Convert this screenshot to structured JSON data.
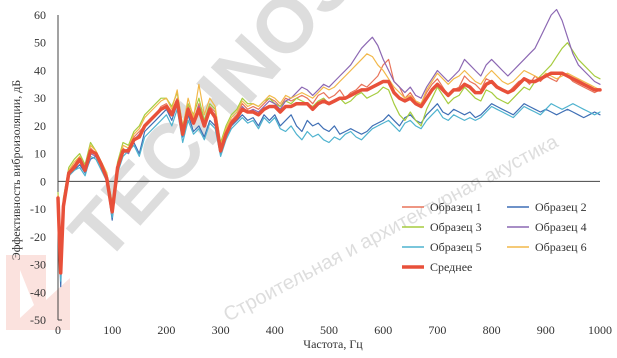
{
  "chart_data": {
    "type": "line",
    "title": "",
    "xlabel": "Частота, Гц",
    "ylabel": "Эффективность виброизоляции, дБ",
    "xlim": [
      0,
      1000
    ],
    "ylim": [
      -50,
      60
    ],
    "x_ticks": [
      0,
      100,
      200,
      300,
      400,
      500,
      600,
      700,
      800,
      900,
      1000
    ],
    "y_ticks": [
      -50,
      -40,
      -30,
      -20,
      -10,
      0,
      10,
      20,
      30,
      40,
      50,
      60
    ],
    "grid": false,
    "legend_position": "bottom-right",
    "x": [
      0,
      5,
      10,
      20,
      30,
      40,
      50,
      60,
      70,
      80,
      90,
      100,
      110,
      120,
      130,
      140,
      150,
      160,
      170,
      180,
      190,
      200,
      210,
      220,
      230,
      240,
      250,
      260,
      270,
      280,
      290,
      300,
      310,
      320,
      330,
      340,
      350,
      360,
      370,
      380,
      390,
      400,
      410,
      420,
      430,
      440,
      450,
      460,
      470,
      480,
      490,
      500,
      510,
      520,
      530,
      540,
      550,
      560,
      570,
      580,
      590,
      600,
      610,
      620,
      630,
      640,
      650,
      660,
      670,
      680,
      690,
      700,
      710,
      720,
      730,
      740,
      750,
      760,
      770,
      780,
      790,
      800,
      810,
      820,
      830,
      840,
      850,
      860,
      870,
      880,
      890,
      900,
      910,
      920,
      930,
      940,
      950,
      960,
      970,
      980,
      990,
      1000
    ],
    "series": [
      {
        "name": "Образец 1",
        "color": "#e8735a",
        "width": 1.2,
        "values": [
          -5,
          -32,
          -8,
          4,
          6,
          9,
          4,
          12,
          10,
          6,
          2,
          -10,
          6,
          12,
          10,
          16,
          18,
          20,
          22,
          24,
          27,
          28,
          25,
          30,
          18,
          27,
          22,
          28,
          21,
          27,
          25,
          12,
          18,
          22,
          24,
          28,
          26,
          27,
          26,
          28,
          30,
          29,
          27,
          30,
          29,
          30,
          31,
          30,
          28,
          31,
          32,
          30,
          31,
          33,
          30,
          32,
          33,
          35,
          34,
          36,
          38,
          42,
          44,
          36,
          34,
          30,
          32,
          29,
          28,
          32,
          35,
          37,
          34,
          31,
          33,
          34,
          38,
          36,
          35,
          33,
          37,
          36,
          34,
          33,
          32,
          34,
          36,
          37,
          35,
          38,
          36,
          38,
          37,
          36,
          39,
          38,
          36,
          35,
          34,
          33,
          32,
          33
        ]
      },
      {
        "name": "Образец 2",
        "color": "#3f6fb5",
        "width": 1.2,
        "values": [
          -8,
          -38,
          -10,
          2,
          4,
          6,
          3,
          8,
          9,
          5,
          0,
          -14,
          4,
          10,
          12,
          14,
          10,
          18,
          20,
          22,
          24,
          26,
          22,
          28,
          16,
          24,
          18,
          20,
          16,
          22,
          20,
          10,
          16,
          20,
          22,
          24,
          22,
          23,
          20,
          24,
          22,
          24,
          20,
          22,
          24,
          20,
          18,
          22,
          20,
          21,
          19,
          18,
          20,
          17,
          18,
          19,
          18,
          17,
          18,
          20,
          21,
          22,
          24,
          22,
          20,
          23,
          24,
          22,
          21,
          24,
          26,
          28,
          25,
          24,
          26,
          25,
          24,
          25,
          23,
          24,
          26,
          28,
          27,
          26,
          25,
          24,
          26,
          28,
          27,
          26,
          25,
          26,
          25,
          24,
          25,
          26,
          25,
          24,
          23,
          24,
          25,
          24
        ]
      },
      {
        "name": "Образец 3",
        "color": "#a6cc3f",
        "width": 1.2,
        "values": [
          -4,
          -30,
          -6,
          5,
          8,
          10,
          6,
          14,
          11,
          7,
          3,
          -8,
          7,
          14,
          13,
          18,
          20,
          24,
          26,
          28,
          30,
          30,
          27,
          32,
          20,
          28,
          24,
          30,
          22,
          28,
          26,
          14,
          20,
          24,
          26,
          30,
          28,
          28,
          27,
          29,
          30,
          28,
          27,
          29,
          28,
          30,
          29,
          28,
          27,
          29,
          30,
          28,
          29,
          30,
          28,
          29,
          31,
          32,
          30,
          31,
          32,
          34,
          33,
          28,
          24,
          22,
          25,
          22,
          20,
          26,
          30,
          34,
          31,
          28,
          30,
          31,
          34,
          32,
          30,
          29,
          33,
          32,
          30,
          29,
          28,
          30,
          32,
          34,
          33,
          36,
          38,
          40,
          42,
          45,
          48,
          50,
          47,
          44,
          42,
          40,
          38,
          37
        ]
      },
      {
        "name": "Образец 4",
        "color": "#8c68b3",
        "width": 1.2,
        "values": [
          -6,
          -34,
          -9,
          3,
          5,
          7,
          4,
          10,
          9,
          6,
          1,
          -12,
          5,
          11,
          10,
          15,
          17,
          20,
          22,
          24,
          26,
          27,
          24,
          29,
          17,
          25,
          21,
          27,
          20,
          26,
          24,
          11,
          17,
          21,
          23,
          27,
          25,
          26,
          25,
          27,
          29,
          28,
          26,
          29,
          30,
          32,
          34,
          33,
          31,
          33,
          35,
          34,
          36,
          38,
          40,
          42,
          45,
          48,
          50,
          52,
          49,
          44,
          40,
          36,
          34,
          32,
          34,
          31,
          30,
          34,
          37,
          40,
          38,
          36,
          38,
          40,
          44,
          42,
          40,
          38,
          42,
          44,
          42,
          40,
          38,
          40,
          42,
          44,
          46,
          48,
          52,
          56,
          60,
          62,
          58,
          52,
          46,
          42,
          40,
          38,
          36,
          35
        ]
      },
      {
        "name": "Образец 5",
        "color": "#4fb3cf",
        "width": 1.2,
        "values": [
          -7,
          -36,
          -11,
          2,
          4,
          5,
          2,
          9,
          8,
          4,
          0,
          -13,
          3,
          9,
          11,
          13,
          9,
          16,
          18,
          20,
          22,
          24,
          20,
          26,
          14,
          22,
          17,
          19,
          15,
          21,
          19,
          9,
          15,
          19,
          21,
          23,
          21,
          22,
          19,
          23,
          21,
          23,
          19,
          18,
          20,
          17,
          15,
          18,
          16,
          17,
          15,
          14,
          16,
          15,
          17,
          18,
          16,
          15,
          17,
          19,
          20,
          21,
          22,
          20,
          18,
          21,
          22,
          20,
          19,
          22,
          24,
          26,
          23,
          22,
          24,
          23,
          22,
          23,
          22,
          23,
          25,
          27,
          26,
          25,
          24,
          23,
          25,
          27,
          26,
          25,
          24,
          26,
          28,
          27,
          26,
          27,
          28,
          27,
          26,
          25,
          24,
          25
        ]
      },
      {
        "name": "Образец 6",
        "color": "#f2b84a",
        "width": 1.2,
        "values": [
          -5,
          -31,
          -7,
          4,
          7,
          9,
          5,
          13,
          11,
          7,
          3,
          -9,
          6,
          13,
          12,
          17,
          19,
          23,
          25,
          27,
          29,
          30,
          26,
          33,
          19,
          30,
          23,
          35,
          24,
          30,
          27,
          13,
          19,
          23,
          25,
          29,
          27,
          28,
          27,
          29,
          31,
          30,
          28,
          31,
          30,
          31,
          32,
          31,
          30,
          32,
          34,
          33,
          34,
          36,
          38,
          40,
          42,
          44,
          46,
          45,
          42,
          40,
          37,
          34,
          32,
          30,
          31,
          29,
          28,
          33,
          36,
          39,
          37,
          35,
          37,
          38,
          40,
          38,
          36,
          35,
          38,
          40,
          38,
          36,
          35,
          36,
          38,
          40,
          39,
          38,
          37,
          39,
          38,
          37,
          38,
          39,
          38,
          37,
          36,
          35,
          34,
          33
        ]
      },
      {
        "name": "Среднее",
        "color": "#e8503a",
        "width": 3.5,
        "values": [
          -6,
          -33,
          -9,
          3,
          5,
          8,
          4,
          11,
          10,
          6,
          1,
          -11,
          5,
          11,
          11,
          15,
          16,
          20,
          22,
          24,
          26,
          27,
          24,
          29,
          17,
          26,
          21,
          26,
          20,
          26,
          23,
          11,
          17,
          21,
          23,
          26,
          25,
          25,
          24,
          26,
          27,
          27,
          25,
          27,
          27,
          28,
          28,
          28,
          26,
          28,
          29,
          28,
          29,
          30,
          30,
          31,
          32,
          33,
          33,
          34,
          35,
          36,
          36,
          32,
          30,
          29,
          30,
          28,
          27,
          30,
          33,
          35,
          33,
          31,
          33,
          33,
          35,
          34,
          32,
          32,
          35,
          36,
          34,
          33,
          32,
          33,
          35,
          37,
          36,
          36,
          37,
          38,
          39,
          39,
          39,
          38,
          37,
          36,
          35,
          34,
          33,
          33
        ]
      }
    ]
  },
  "watermark": {
    "text_main": "TECHNOSONUS",
    "text_sub": "Строительная и архитектурная акустика",
    "color": "#e8503a"
  }
}
